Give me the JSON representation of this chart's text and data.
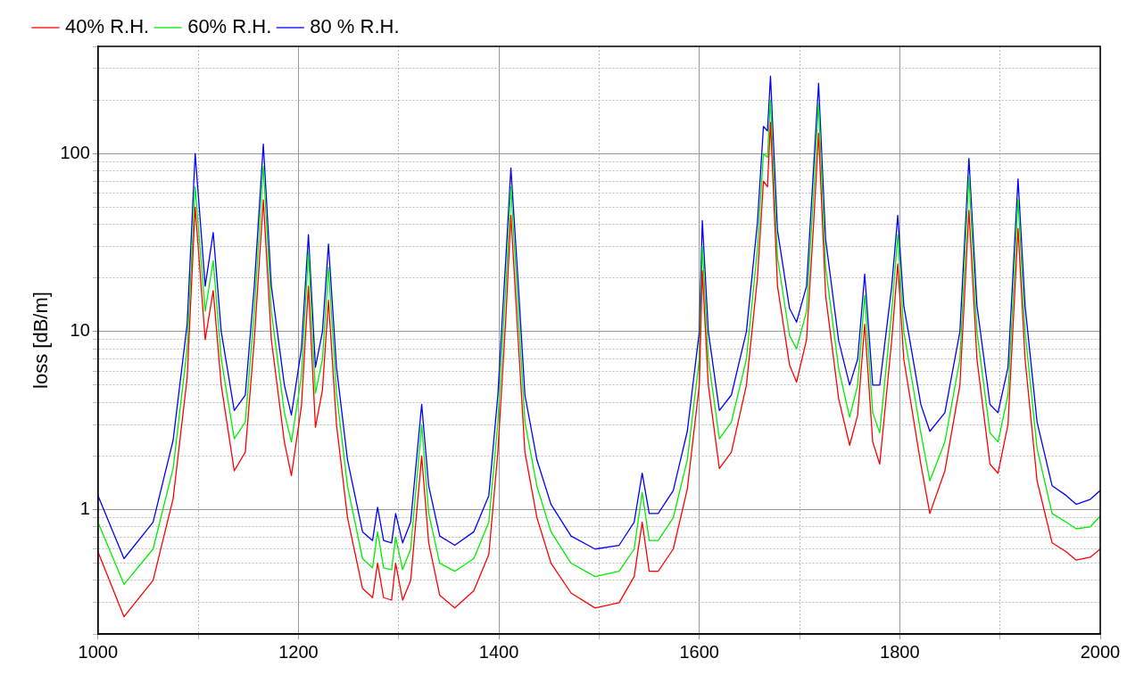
{
  "chart_data": {
    "type": "line",
    "ylabel": "loss [dB/m]",
    "log": "y",
    "grid": true,
    "legend": "top left",
    "marker": "none",
    "line_style": "solid",
    "x": [
      1000,
      1026,
      1055,
      1075,
      1089,
      1097,
      1107,
      1115,
      1123,
      1136,
      1147,
      1156,
      1165,
      1173,
      1186,
      1193,
      1203,
      1210,
      1217,
      1224,
      1230,
      1238,
      1249,
      1264,
      1274,
      1279,
      1285,
      1293,
      1297,
      1304,
      1312,
      1323,
      1330,
      1341,
      1356,
      1375,
      1390,
      1399,
      1407,
      1412,
      1419,
      1426,
      1438,
      1452,
      1472,
      1496,
      1520,
      1535,
      1543,
      1550,
      1559,
      1574,
      1588,
      1600,
      1603,
      1609,
      1620,
      1632,
      1647,
      1658,
      1664,
      1668,
      1671,
      1678,
      1690,
      1697,
      1707,
      1714,
      1719,
      1726,
      1739,
      1750,
      1758,
      1765,
      1773,
      1780,
      1792,
      1798,
      1804,
      1821,
      1830,
      1845,
      1860,
      1869,
      1877,
      1890,
      1898,
      1908,
      1918,
      1925,
      1937,
      1952,
      1966,
      1976,
      1990,
      2000
    ],
    "xlim": [
      1000,
      2000
    ],
    "xticks": [
      1000,
      {
        "value": 1100,
        "label": null
      },
      1200,
      {
        "value": 1300,
        "label": null
      },
      1400,
      {
        "value": 1500,
        "label": null
      },
      1600,
      {
        "value": 1700,
        "label": null
      },
      1800,
      {
        "value": 1900,
        "label": null
      },
      2000
    ],
    "ylim": [
      0.2,
      400
    ],
    "yticks": [
      {
        "value": 0.2,
        "label": null
      },
      {
        "value": 0.3,
        "label": null
      },
      {
        "value": 0.4,
        "label": null
      },
      {
        "value": 0.5,
        "label": null
      },
      {
        "value": 0.6,
        "label": null
      },
      {
        "value": 0.7,
        "label": null
      },
      {
        "value": 0.8,
        "label": null
      },
      {
        "value": 0.9,
        "label": null
      },
      1,
      {
        "value": 2,
        "label": null
      },
      {
        "value": 3,
        "label": null
      },
      {
        "value": 4,
        "label": null
      },
      {
        "value": 5,
        "label": null
      },
      {
        "value": 6,
        "label": null
      },
      {
        "value": 7,
        "label": null
      },
      {
        "value": 8,
        "label": null
      },
      {
        "value": 9,
        "label": null
      },
      10,
      {
        "value": 20,
        "label": null
      },
      {
        "value": 30,
        "label": null
      },
      {
        "value": 40,
        "label": null
      },
      {
        "value": 50,
        "label": null
      },
      {
        "value": 60,
        "label": null
      },
      {
        "value": 70,
        "label": null
      },
      {
        "value": 80,
        "label": null
      },
      {
        "value": 90,
        "label": null
      },
      100,
      {
        "value": 200,
        "label": null
      },
      {
        "value": 300,
        "label": null
      },
      {
        "value": 400,
        "label": null
      }
    ],
    "series": [
      {
        "name": "40% R.H.",
        "color": "#ff0000",
        "values": [
          0.58,
          0.25,
          0.4,
          1.15,
          5.5,
          50,
          9,
          17,
          5,
          1.65,
          2.1,
          9,
          55,
          9,
          2.4,
          1.55,
          3.8,
          18,
          2.9,
          4.7,
          15,
          3,
          0.9,
          0.36,
          0.32,
          0.5,
          0.32,
          0.31,
          0.5,
          0.31,
          0.4,
          2.0,
          0.65,
          0.33,
          0.28,
          0.35,
          0.56,
          2.1,
          12,
          45,
          9.5,
          2.1,
          0.9,
          0.5,
          0.34,
          0.28,
          0.3,
          0.42,
          0.85,
          0.45,
          0.45,
          0.6,
          1.3,
          5,
          22,
          5,
          1.7,
          2.1,
          5,
          20,
          70,
          65,
          150,
          18,
          6.5,
          5.2,
          9,
          40,
          130,
          16,
          4.2,
          2.3,
          3.4,
          11,
          2.4,
          1.8,
          9,
          24,
          7,
          1.8,
          0.95,
          1.65,
          5,
          48,
          7,
          1.8,
          1.6,
          3,
          38,
          7,
          1.45,
          0.65,
          0.58,
          0.52,
          0.54,
          0.6
        ]
      },
      {
        "name": "60% R.H.",
        "color": "#00ee00",
        "values": [
          0.85,
          0.38,
          0.6,
          1.7,
          8,
          65,
          13,
          25,
          7,
          2.5,
          3.1,
          13,
          85,
          13,
          3.5,
          2.4,
          5.6,
          28,
          4.5,
          7,
          23,
          4.5,
          1.35,
          0.53,
          0.47,
          0.75,
          0.47,
          0.46,
          0.7,
          0.46,
          0.6,
          3.0,
          0.95,
          0.5,
          0.45,
          0.53,
          0.85,
          3.1,
          18,
          65,
          14,
          3.1,
          1.35,
          0.75,
          0.5,
          0.42,
          0.45,
          0.6,
          1.25,
          0.67,
          0.67,
          0.9,
          1.9,
          7,
          30,
          7,
          2.5,
          3.1,
          7,
          29,
          100,
          95,
          200,
          26,
          9.5,
          8,
          13,
          60,
          190,
          23,
          6.2,
          3.3,
          5,
          16,
          3.5,
          2.7,
          13,
          35,
          10,
          2.7,
          1.45,
          2.4,
          7,
          75,
          10,
          2.7,
          2.4,
          4.4,
          55,
          10,
          2.2,
          0.95,
          0.85,
          0.78,
          0.8,
          0.92
        ]
      },
      {
        "name": "80 % R.H.",
        "color": "#0000ff",
        "values": [
          1.2,
          0.53,
          0.85,
          2.45,
          11,
          100,
          18,
          36,
          10,
          3.6,
          4.4,
          18,
          113,
          18,
          5,
          3.4,
          8,
          35,
          6.3,
          10,
          31,
          6.3,
          1.9,
          0.75,
          0.67,
          1.03,
          0.67,
          0.65,
          0.95,
          0.65,
          0.85,
          3.9,
          1.36,
          0.71,
          0.63,
          0.75,
          1.2,
          4.4,
          26,
          83,
          20,
          4.4,
          1.9,
          1.07,
          0.71,
          0.6,
          0.63,
          0.85,
          1.6,
          0.95,
          0.95,
          1.28,
          2.75,
          10,
          42,
          10,
          3.6,
          4.4,
          10,
          41,
          142,
          134,
          272,
          37,
          13.5,
          11.3,
          18,
          83,
          248,
          33,
          8.9,
          5,
          7,
          21,
          5,
          5,
          18,
          45,
          14,
          3.9,
          2.75,
          3.5,
          10,
          94,
          14,
          3.9,
          3.5,
          6.3,
          72,
          14,
          3.1,
          1.36,
          1.2,
          1.07,
          1.14,
          1.28
        ]
      }
    ]
  }
}
